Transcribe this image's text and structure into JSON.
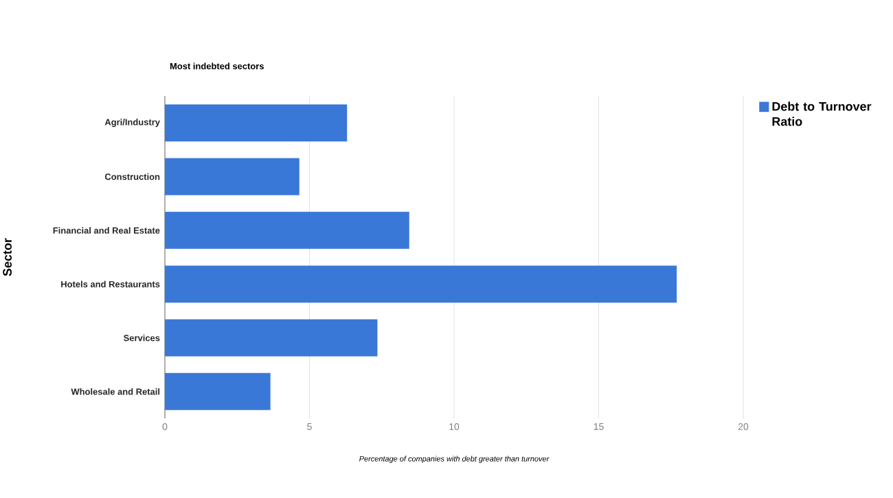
{
  "chart_data": {
    "type": "bar",
    "orientation": "horizontal",
    "title": "Most indebted sectors",
    "xlabel": "Percentage of companies with debt greater than turnover",
    "ylabel": "Sector",
    "categories": [
      "Agri/Industry",
      "Construction",
      "Financial and Real Estate",
      "Hotels and Restaurants",
      "Services",
      "Wholesale and Retail"
    ],
    "series": [
      {
        "name": "Debt to Turnover Ratio",
        "color": "#3a78d8",
        "values": [
          6.3,
          4.65,
          8.45,
          17.7,
          7.35,
          3.65
        ]
      }
    ],
    "xlim": [
      0,
      20
    ],
    "xticks": [
      0,
      5,
      10,
      15,
      20
    ],
    "grid": "x",
    "legend": "top right"
  }
}
